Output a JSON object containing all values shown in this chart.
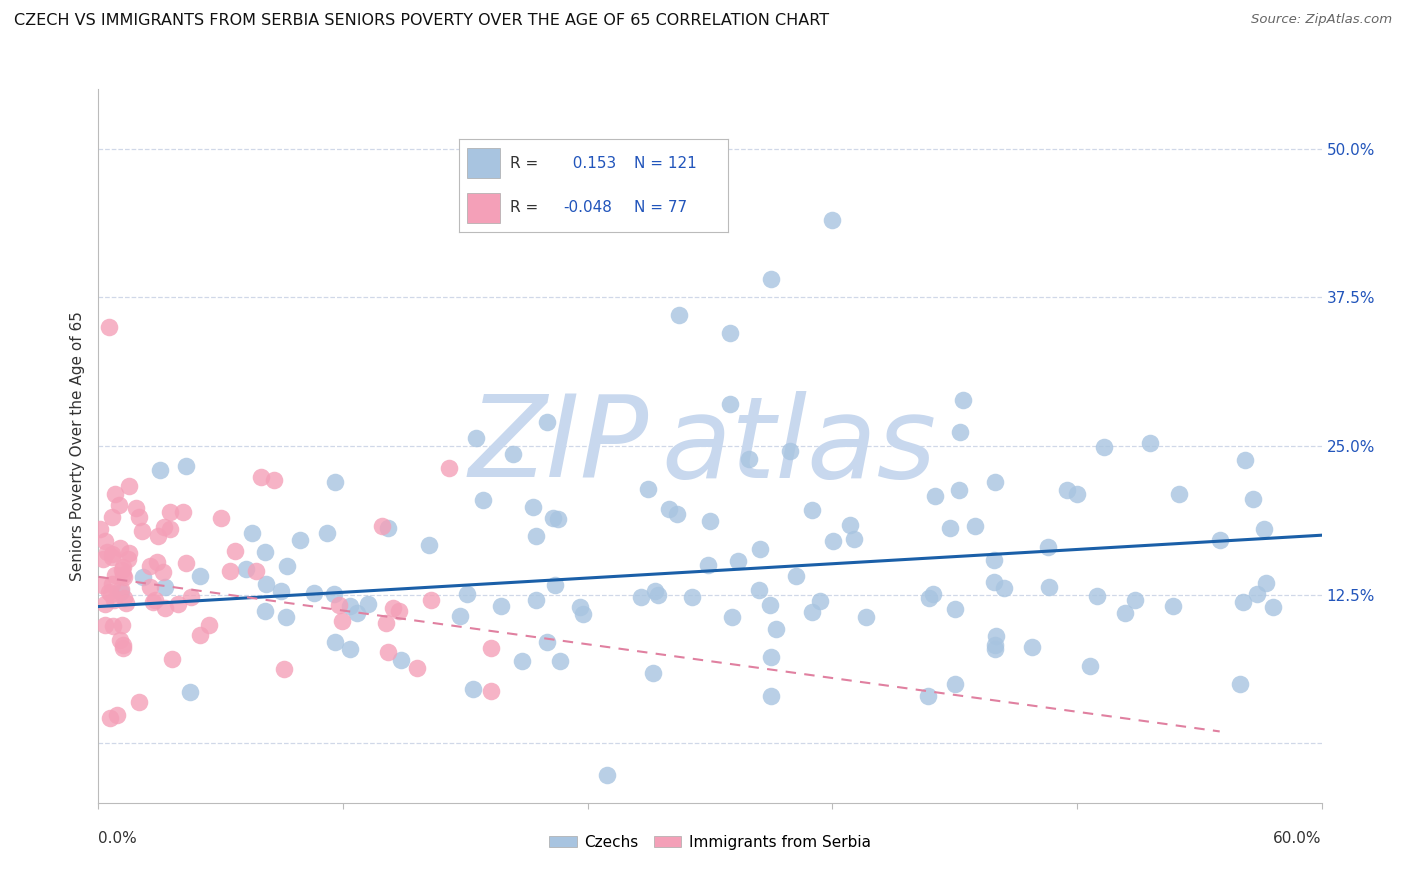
{
  "title": "CZECH VS IMMIGRANTS FROM SERBIA SENIORS POVERTY OVER THE AGE OF 65 CORRELATION CHART",
  "source": "Source: ZipAtlas.com",
  "ylabel": "Seniors Poverty Over the Age of 65",
  "R_czech": 0.153,
  "N_czech": 121,
  "R_serbia": -0.048,
  "N_serbia": 77,
  "czech_color": "#a8c4e0",
  "serbia_color": "#f4a0b8",
  "trendline_czech_color": "#1a5fa8",
  "trendline_serbia_color": "#e080a0",
  "watermark_zip": "ZIP",
  "watermark_atlas": "atlas",
  "watermark_color": "#c8d8ee",
  "background_color": "#ffffff",
  "grid_color": "#d0d8e8",
  "title_fontsize": 11.5,
  "axis_label_fontsize": 11,
  "tick_fontsize": 11,
  "legend_fontsize": 11,
  "xlim": [
    0,
    60
  ],
  "ylim": [
    -5,
    55
  ],
  "ytick_vals": [
    0,
    12.5,
    25.0,
    37.5,
    50.0
  ],
  "ytick_labels": [
    "",
    "12.5%",
    "25.0%",
    "37.5%",
    "50.0%"
  ],
  "czech_trend_x0": 0,
  "czech_trend_y0": 11.5,
  "czech_trend_x1": 60,
  "czech_trend_y1": 17.5,
  "serbia_trend_x0": 0,
  "serbia_trend_y0": 14.0,
  "serbia_trend_x1": 55,
  "serbia_trend_y1": 1.0
}
